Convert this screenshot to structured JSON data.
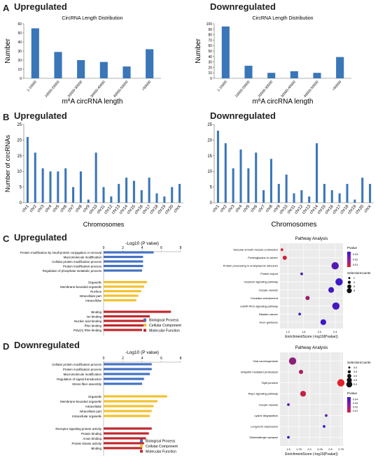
{
  "panel_letters": [
    "A",
    "B",
    "C",
    "D"
  ],
  "headings": {
    "a_up": "Upregulated",
    "a_down": "Downregulated",
    "b_up": "Upregulated",
    "b_down": "Downregulated",
    "c_up": "Upregulated",
    "d_down": "Downregulated"
  },
  "colors": {
    "bar_blue": "#3a76b8",
    "bio_blue": "#4472c4",
    "cell_yellow": "#f2c12e",
    "mol_red": "#c0282d",
    "bubble_red": "#e0202a",
    "bubble_purple": "#8a1cb3",
    "bubble_blue": "#3a18c8"
  },
  "chart_data": [
    {
      "id": "a_up",
      "type": "bar",
      "title": "CircRNA Length Distribution",
      "xlabel": "m6A circRNA length",
      "ylabel": "Number",
      "categories": [
        "1-10000",
        "10000-20000",
        "20000-30000",
        "30000-40000",
        "40000-50000",
        ">50000"
      ],
      "values": [
        55,
        29,
        20,
        18,
        13,
        32
      ],
      "ylim": [
        0,
        60
      ],
      "yticks": [
        0,
        10,
        20,
        30,
        40,
        50,
        60
      ]
    },
    {
      "id": "a_down",
      "type": "bar",
      "title": "CircRNA Length Distribution",
      "xlabel": "m6A circRNA length",
      "ylabel": "Number",
      "categories": [
        "1-10000",
        "10000-20000",
        "20000-30000",
        "30000-40000",
        "40000-50000",
        ">50000"
      ],
      "values": [
        95,
        23,
        10,
        13,
        10,
        39
      ],
      "ylim": [
        0,
        100
      ],
      "yticks": [
        0,
        10,
        20,
        30,
        40,
        50,
        60,
        70,
        80,
        90,
        100
      ]
    },
    {
      "id": "b_up",
      "type": "bar",
      "xlabel": "Chromosomes",
      "ylabel": "Number of circRNAs",
      "categories": [
        "chr1",
        "chr2",
        "chr3",
        "chr4",
        "chr5",
        "chr6",
        "chr7",
        "chr8",
        "chr9",
        "chr10",
        "chr11",
        "chr12",
        "chr13",
        "chr14",
        "chr15",
        "chr16",
        "chr17",
        "chr18",
        "chr19",
        "chr20",
        "chrX"
      ],
      "values": [
        21,
        16,
        11,
        10,
        10,
        11,
        5,
        10,
        1,
        16,
        5,
        2,
        6,
        8,
        7,
        4,
        8,
        3,
        2,
        5,
        6
      ],
      "ylim": [
        0,
        25
      ],
      "yticks": [
        0,
        5,
        10,
        15,
        20,
        25
      ]
    },
    {
      "id": "b_down",
      "type": "bar",
      "xlabel": "Chromosomes",
      "ylabel": "",
      "categories": [
        "chr1",
        "chr2",
        "chr3",
        "chr4",
        "chr5",
        "chr6",
        "chr7",
        "chr8",
        "chr9",
        "chr10",
        "chr11",
        "chr12",
        "chr13",
        "chr14",
        "chr15",
        "chr16",
        "chr17",
        "chr18",
        "chr19",
        "chr20",
        "chrX"
      ],
      "values": [
        23,
        19,
        11,
        17,
        11,
        16,
        4,
        14,
        6,
        9,
        3,
        4,
        2,
        19,
        6,
        4,
        3,
        6,
        1,
        8,
        6
      ],
      "ylim": [
        0,
        25
      ],
      "yticks": [
        0,
        5,
        10,
        15,
        20,
        25
      ]
    },
    {
      "id": "c_go",
      "type": "bar",
      "orientation": "horizontal",
      "xlabel": "-Log10 (P value)",
      "xlim": [
        0,
        8
      ],
      "xticks": [
        0,
        2,
        4,
        6,
        8
      ],
      "categories": [
        "Protein modification by small protein conjugation or removal",
        "Macromolecule modification",
        "Cellular protein modification process",
        "Protein modification process",
        "Regulation of phosphate metabolic process",
        "Organelle",
        "Membrane-bounded organelle",
        "Nucleus",
        "Intracellular part",
        "Intracellular",
        "Binding",
        "Ion binding",
        "Nucleic acid binding",
        "RNA binding",
        "Poly(A) RNA binding"
      ],
      "groups": [
        "bio",
        "bio",
        "bio",
        "bio",
        "bio",
        "cell",
        "cell",
        "cell",
        "cell",
        "cell",
        "mol",
        "mol",
        "mol",
        "mol",
        "mol"
      ],
      "values": [
        5.2,
        4.1,
        4.1,
        4.1,
        4.0,
        4.5,
        4.2,
        3.9,
        3.6,
        3.4,
        7.0,
        4.8,
        4.4,
        4.3,
        4.0
      ],
      "legend": [
        "Biological Process",
        "Cellular Component",
        "Molecular Function"
      ]
    },
    {
      "id": "c_pathway",
      "type": "scatter",
      "title": "Pathway Analysis",
      "xlabel": "EnrichmentScore (-log10(Pvalue))",
      "xlim": [
        1.0,
        2.6
      ],
      "xticks": [
        1.2,
        1.6,
        2.0,
        2.4
      ],
      "categories": [
        "Vascular smooth muscle contraction",
        "Proteoglycans in cancer",
        "Protein processing in endoplasmic reticulum",
        "Protein export",
        "Oxytocin signaling pathway",
        "Oocyte meiosis",
        "Circadian entrainment",
        "cGMP-PKG signaling pathway",
        "Bladder cancer",
        "Axon guidance"
      ],
      "x": [
        1.05,
        1.12,
        2.4,
        1.55,
        2.5,
        2.3,
        1.7,
        2.42,
        1.5,
        2.1
      ],
      "size": [
        1,
        2,
        4,
        1,
        4,
        3,
        2,
        4,
        1,
        3
      ],
      "pvalue": [
        0.005,
        0.007,
        0.035,
        0.038,
        0.04,
        0.038,
        0.02,
        0.038,
        0.04,
        0.04
      ],
      "legend_title_color": "Pvalue",
      "legend_ticks_color": [
        "0.03",
        "0.02",
        "0.01"
      ],
      "legend_title_size": "SelectionCounts",
      "legend_ticks_size": [
        "2",
        "4",
        "6",
        "8"
      ]
    },
    {
      "id": "d_go",
      "type": "bar",
      "orientation": "horizontal",
      "xlabel": "-Log10 (P value)",
      "xlim": [
        0,
        8
      ],
      "xticks": [
        0,
        2,
        4,
        6,
        8
      ],
      "categories": [
        "Cellular protein modification process",
        "Protein modification process",
        "Macromolecule modification",
        "Regulation of signal transduction",
        "Stress fiber assembly",
        "Organelle",
        "Membrane-bounded organelle",
        "Intracellular",
        "Intracellular part",
        "Intracellular organelle",
        "Receptor signaling protein activity",
        "Protein binding",
        "Anion binding",
        "Protein kinase activity",
        "Binding"
      ],
      "groups": [
        "bio",
        "bio",
        "bio",
        "bio",
        "bio",
        "cell",
        "cell",
        "cell",
        "cell",
        "cell",
        "mol",
        "mol",
        "mol",
        "mol",
        "mol"
      ],
      "values": [
        5.0,
        5.0,
        4.8,
        4.2,
        4.0,
        6.6,
        5.6,
        5.2,
        5.0,
        4.8,
        5.0,
        4.7,
        4.4,
        4.2,
        4.0
      ],
      "legend": [
        "Biological Process",
        "Cellular Component",
        "Molecular Function"
      ]
    },
    {
      "id": "d_pathway",
      "type": "scatter",
      "title": "Pathway Analysis",
      "xlabel": "EnrichmentScore (-log10(Pvalue))",
      "xlim": [
        1.3,
        2.8
      ],
      "xticks": [
        1.5,
        1.75,
        2.0,
        2.25,
        2.5,
        2.75
      ],
      "categories": [
        "Viral carcinogenesis",
        "Ubiquitin mediated proteolysis",
        "Tight junction",
        "Rap1 signaling pathway",
        "Oocyte meiosis",
        "Lysine degradation",
        "Long-term depression",
        "Glutamatergic synapse"
      ],
      "x": [
        1.6,
        1.8,
        2.75,
        1.85,
        1.5,
        2.4,
        2.35,
        1.5
      ],
      "size": [
        4,
        2,
        4,
        3,
        1,
        1,
        1,
        1
      ],
      "pvalue": [
        0.02,
        0.015,
        0.005,
        0.01,
        0.03,
        0.03,
        0.035,
        0.035
      ],
      "legend_title_size": "SelectionCounts",
      "legend_ticks_size": [
        "3.0",
        "3.5",
        "4.0",
        "4.5",
        "5.0"
      ],
      "legend_title_color": "Pvalue",
      "legend_ticks_color": [
        "0.04",
        "0.03",
        "0.02",
        "0.01"
      ]
    }
  ]
}
